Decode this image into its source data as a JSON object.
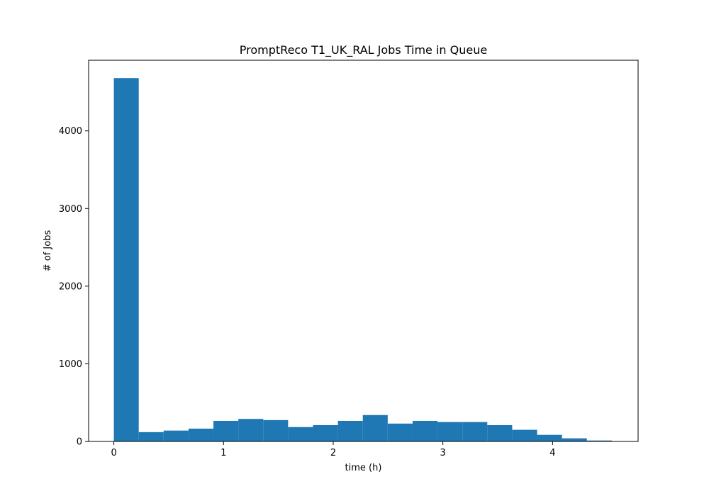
{
  "chart_data": {
    "type": "bar",
    "title": "PromptReco T1_UK_RAL Jobs Time in Queue",
    "xlabel": "time (h)",
    "ylabel": "# of Jobs",
    "xlim": [
      -0.23,
      4.78
    ],
    "ylim": [
      0,
      4910
    ],
    "x_ticks": [
      0,
      1,
      2,
      3,
      4
    ],
    "x_tick_labels": [
      "0",
      "1",
      "2",
      "3",
      "4"
    ],
    "y_ticks": [
      0,
      1000,
      2000,
      3000,
      4000
    ],
    "y_tick_labels": [
      "0",
      "1000",
      "2000",
      "3000",
      "4000"
    ],
    "bin_edges": [
      0,
      0.227,
      0.454,
      0.681,
      0.908,
      1.135,
      1.362,
      1.589,
      1.816,
      2.043,
      2.27,
      2.497,
      2.724,
      2.951,
      3.178,
      3.405,
      3.632,
      3.859,
      4.086,
      4.313,
      4.54
    ],
    "values": [
      4680,
      120,
      140,
      165,
      265,
      290,
      275,
      185,
      210,
      265,
      340,
      230,
      265,
      250,
      250,
      210,
      150,
      85,
      40,
      12
    ],
    "bar_color": "#1f77b4",
    "grid": false,
    "legend": "none"
  }
}
